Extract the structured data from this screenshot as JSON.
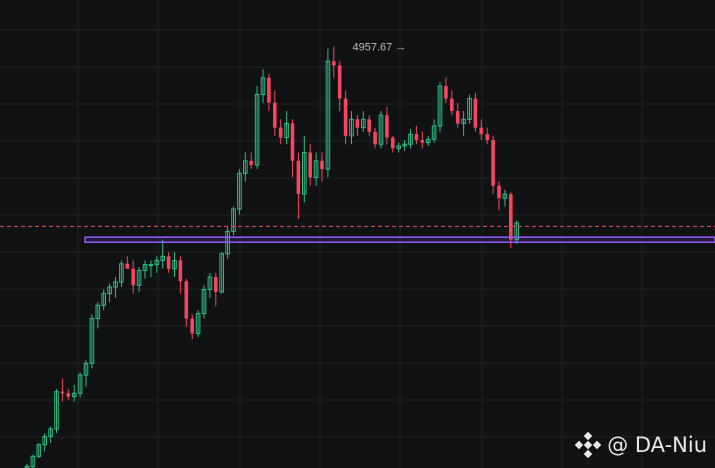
{
  "chart_data": {
    "type": "candlestick",
    "grid": true,
    "colors": {
      "background": "#111214",
      "up": "#2ebd85",
      "down": "#f6465d",
      "current_price_line": "#f6465d",
      "support_zone": "#9b59ff",
      "grid": "#1f2124"
    },
    "annotations": [
      {
        "type": "peak-label",
        "text": "4957.67 →",
        "price": 4957.67,
        "candle_index": 65
      }
    ],
    "current_price": 4741,
    "support_zone": {
      "low": 4722,
      "high": 4728
    },
    "price_range": [
      4450,
      4980
    ],
    "candles": [
      [
        4450,
        4455,
        4448,
        4452
      ],
      [
        4452,
        4466,
        4450,
        4464
      ],
      [
        4464,
        4480,
        4462,
        4478
      ],
      [
        4478,
        4492,
        4470,
        4488
      ],
      [
        4488,
        4500,
        4480,
        4497
      ],
      [
        4497,
        4545,
        4492,
        4542
      ],
      [
        4542,
        4558,
        4530,
        4540
      ],
      [
        4540,
        4545,
        4532,
        4536
      ],
      [
        4536,
        4550,
        4530,
        4540
      ],
      [
        4540,
        4565,
        4535,
        4562
      ],
      [
        4562,
        4580,
        4548,
        4576
      ],
      [
        4576,
        4635,
        4570,
        4630
      ],
      [
        4630,
        4650,
        4618,
        4646
      ],
      [
        4646,
        4665,
        4640,
        4660
      ],
      [
        4660,
        4672,
        4650,
        4668
      ],
      [
        4668,
        4680,
        4655,
        4674
      ],
      [
        4674,
        4700,
        4668,
        4696
      ],
      [
        4696,
        4705,
        4690,
        4690
      ],
      [
        4690,
        4700,
        4660,
        4670
      ],
      [
        4670,
        4692,
        4662,
        4688
      ],
      [
        4688,
        4700,
        4678,
        4695
      ],
      [
        4695,
        4700,
        4680,
        4695
      ],
      [
        4695,
        4705,
        4685,
        4700
      ],
      [
        4700,
        4725,
        4690,
        4705
      ],
      [
        4705,
        4710,
        4685,
        4690
      ],
      [
        4690,
        4710,
        4680,
        4700
      ],
      [
        4700,
        4705,
        4660,
        4675
      ],
      [
        4675,
        4678,
        4620,
        4630
      ],
      [
        4630,
        4635,
        4605,
        4612
      ],
      [
        4612,
        4640,
        4608,
        4636
      ],
      [
        4636,
        4670,
        4630,
        4665
      ],
      [
        4665,
        4685,
        4655,
        4680
      ],
      [
        4680,
        4685,
        4645,
        4662
      ],
      [
        4662,
        4710,
        4660,
        4708
      ],
      [
        4708,
        4740,
        4702,
        4735
      ],
      [
        4735,
        4765,
        4730,
        4762
      ],
      [
        4762,
        4810,
        4755,
        4805
      ],
      [
        4805,
        4830,
        4795,
        4820
      ],
      [
        4820,
        4830,
        4810,
        4815
      ],
      [
        4815,
        4910,
        4810,
        4900
      ],
      [
        4900,
        4930,
        4890,
        4920
      ],
      [
        4920,
        4925,
        4880,
        4890
      ],
      [
        4890,
        4905,
        4850,
        4860
      ],
      [
        4860,
        4870,
        4840,
        4848
      ],
      [
        4848,
        4880,
        4840,
        4865
      ],
      [
        4865,
        4870,
        4800,
        4820
      ],
      [
        4820,
        4830,
        4750,
        4780
      ],
      [
        4780,
        4850,
        4770,
        4830
      ],
      [
        4830,
        4840,
        4790,
        4800
      ],
      [
        4800,
        4830,
        4790,
        4820
      ],
      [
        4820,
        4830,
        4795,
        4810
      ],
      [
        4810,
        4955,
        4800,
        4940
      ],
      [
        4940,
        4958,
        4920,
        4935
      ],
      [
        4935,
        4940,
        4880,
        4895
      ],
      [
        4895,
        4905,
        4840,
        4850
      ],
      [
        4850,
        4880,
        4840,
        4870
      ],
      [
        4870,
        4875,
        4850,
        4860
      ],
      [
        4860,
        4880,
        4855,
        4870
      ],
      [
        4870,
        4875,
        4850,
        4855
      ],
      [
        4855,
        4860,
        4835,
        4840
      ],
      [
        4840,
        4880,
        4835,
        4875
      ],
      [
        4875,
        4885,
        4840,
        4848
      ],
      [
        4848,
        4850,
        4830,
        4835
      ],
      [
        4835,
        4842,
        4830,
        4838
      ],
      [
        4838,
        4845,
        4832,
        4840
      ],
      [
        4840,
        4858,
        4835,
        4852
      ],
      [
        4852,
        4862,
        4840,
        4845
      ],
      [
        4845,
        4855,
        4835,
        4842
      ],
      [
        4842,
        4850,
        4838,
        4846
      ],
      [
        4846,
        4870,
        4842,
        4862
      ],
      [
        4862,
        4915,
        4855,
        4910
      ],
      [
        4910,
        4920,
        4890,
        4895
      ],
      [
        4895,
        4905,
        4875,
        4880
      ],
      [
        4880,
        4890,
        4860,
        4865
      ],
      [
        4865,
        4880,
        4850,
        4870
      ],
      [
        4870,
        4900,
        4865,
        4895
      ],
      [
        4895,
        4902,
        4855,
        4860
      ],
      [
        4860,
        4870,
        4845,
        4852
      ],
      [
        4852,
        4860,
        4840,
        4845
      ],
      [
        4845,
        4850,
        4780,
        4790
      ],
      [
        4790,
        4795,
        4760,
        4775
      ],
      [
        4775,
        4785,
        4765,
        4780
      ],
      [
        4780,
        4782,
        4715,
        4725
      ],
      [
        4725,
        4748,
        4720,
        4745
      ]
    ]
  },
  "watermark": {
    "logo_icon": "binance-diamond-icon",
    "text": "@ DA-Niu"
  }
}
